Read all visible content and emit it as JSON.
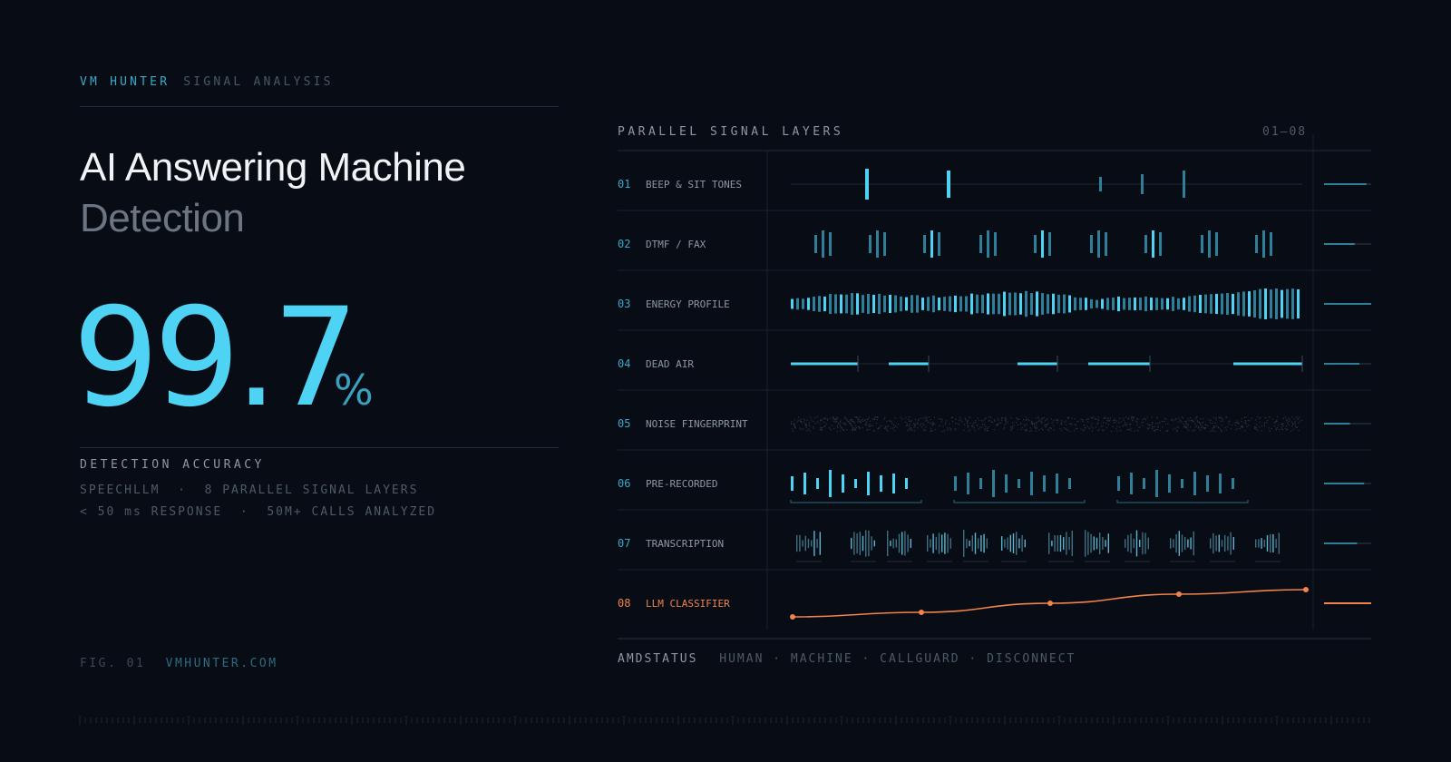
{
  "header": {
    "brand": "VM HUNTER",
    "section": "SIGNAL ANALYSIS"
  },
  "hero": {
    "title_line1": "AI Answering Machine",
    "title_line2": "Detection",
    "accuracy_value": "99.7",
    "accuracy_unit": "%",
    "accuracy_label": "DETECTION ACCURACY",
    "meta_line1": "SPEECHLLM  ·  8 PARALLEL SIGNAL LAYERS",
    "meta_line2": "< 50 ms RESPONSE  ·  50M+ CALLS ANALYZED"
  },
  "footer": {
    "fig": "FIG. 01",
    "site": "VMHUNTER.COM"
  },
  "panel": {
    "title": "PARALLEL SIGNAL LAYERS",
    "range": "01—08",
    "layers": [
      {
        "num": "01",
        "label": "BEEP & SIT TONES",
        "level": 0.9
      },
      {
        "num": "02",
        "label": "DTMF / FAX",
        "level": 0.65
      },
      {
        "num": "03",
        "label": "ENERGY PROFILE",
        "level": 1.0
      },
      {
        "num": "04",
        "label": "DEAD AIR",
        "level": 0.75
      },
      {
        "num": "05",
        "label": "NOISE FINGERPRINT",
        "level": 0.55
      },
      {
        "num": "06",
        "label": "PRE-RECORDED",
        "level": 0.85
      },
      {
        "num": "07",
        "label": "TRANSCRIPTION",
        "level": 0.7
      },
      {
        "num": "08",
        "label": "LLM CLASSIFIER",
        "level": 1.0
      }
    ],
    "status_label": "AMDSTATUS",
    "status_values": "HUMAN · MACHINE · CALLGUARD · DISCONNECT"
  },
  "colors": {
    "accent": "#4fd3f5",
    "accent_dim": "#2f7f99",
    "orange": "#f0844a",
    "background": "#080c14"
  }
}
